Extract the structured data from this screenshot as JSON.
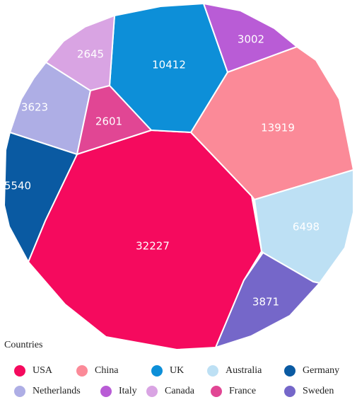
{
  "chart_data": {
    "type": "voronoi-treemap",
    "legend_title": "Countries",
    "legend_position": "bottom",
    "series": [
      {
        "name": "USA",
        "value": 32227,
        "color": "#f50a5e"
      },
      {
        "name": "China",
        "value": 13919,
        "color": "#fb8a98"
      },
      {
        "name": "UK",
        "value": 10412,
        "color": "#0d8fd8"
      },
      {
        "name": "Australia",
        "value": 6498,
        "color": "#bde0f4"
      },
      {
        "name": "Germany",
        "value": 5540,
        "color": "#0a5aa2"
      },
      {
        "name": "Netherlands",
        "value": 3623,
        "color": "#aeaee5"
      },
      {
        "name": "Italy",
        "value": 3002,
        "color": "#b95cd6"
      },
      {
        "name": "Canada",
        "value": 2645,
        "color": "#d9a4e3"
      },
      {
        "name": "France",
        "value": 2601,
        "color": "#e14694"
      },
      {
        "name": "Sweden",
        "value": 3871,
        "color": "#7567c9"
      }
    ]
  }
}
